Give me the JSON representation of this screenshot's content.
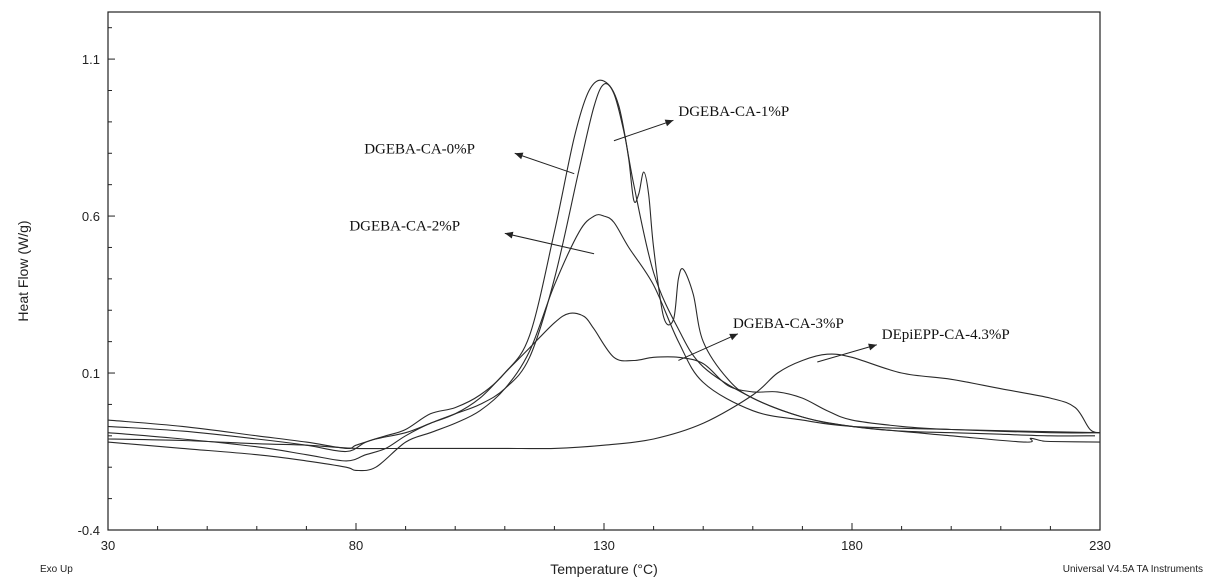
{
  "chart_data": {
    "type": "line",
    "xlabel": "Temperature (°C)",
    "ylabel": "Heat Flow (W/g)",
    "xlim": [
      30,
      230
    ],
    "ylim": [
      -0.4,
      1.25
    ],
    "xticks": [
      30,
      80,
      130,
      180,
      230
    ],
    "xtick_labels": [
      "30",
      "80",
      "130",
      "180",
      "230"
    ],
    "yticks": [
      -0.4,
      0.1,
      0.6,
      1.1
    ],
    "ytick_labels": [
      "-0.4",
      "0.1",
      "0.6",
      "1.1"
    ],
    "grid": false,
    "legend": "annotations with arrows",
    "series": [
      {
        "name": "DGEBA-CA-0%P",
        "x": [
          30,
          45,
          60,
          70,
          78,
          82,
          86,
          90,
          95,
          100,
          105,
          110,
          115,
          120,
          124,
          127,
          130,
          133,
          136,
          140,
          145,
          150,
          160,
          170,
          180,
          190,
          200,
          210,
          220,
          229
        ],
        "y": [
          -0.07,
          -0.085,
          -0.11,
          -0.13,
          -0.15,
          -0.12,
          -0.1,
          -0.08,
          -0.03,
          -0.01,
          0.03,
          0.1,
          0.22,
          0.55,
          0.85,
          1.0,
          1.03,
          0.95,
          0.7,
          0.42,
          0.24,
          0.12,
          0.02,
          -0.04,
          -0.07,
          -0.085,
          -0.09,
          -0.095,
          -0.1,
          -0.1
        ]
      },
      {
        "name": "DGEBA-CA-1%P",
        "x": [
          30,
          45,
          60,
          70,
          78,
          82,
          86,
          90,
          95,
          100,
          105,
          110,
          115,
          120,
          125,
          128,
          130,
          132,
          134,
          135,
          136,
          137,
          138,
          139,
          140,
          142,
          144,
          145,
          146,
          148,
          150,
          155,
          160,
          170,
          180,
          200,
          215,
          216,
          218,
          220,
          230
        ],
        "y": [
          -0.09,
          -0.11,
          -0.135,
          -0.16,
          -0.18,
          -0.16,
          -0.14,
          -0.1,
          -0.06,
          -0.03,
          0.0,
          0.05,
          0.15,
          0.4,
          0.75,
          0.95,
          1.02,
          0.99,
          0.87,
          0.78,
          0.65,
          0.67,
          0.74,
          0.67,
          0.5,
          0.28,
          0.27,
          0.4,
          0.43,
          0.35,
          0.2,
          0.08,
          0.02,
          -0.04,
          -0.07,
          -0.1,
          -0.12,
          -0.108,
          -0.115,
          -0.118,
          -0.12
        ]
      },
      {
        "name": "DGEBA-CA-2%P",
        "x": [
          30,
          45,
          60,
          70,
          78,
          80,
          84,
          90,
          95,
          100,
          105,
          110,
          115,
          120,
          125,
          128,
          130,
          132,
          135,
          140,
          145,
          150,
          160,
          170,
          180,
          200,
          230
        ],
        "y": [
          -0.12,
          -0.14,
          -0.16,
          -0.18,
          -0.2,
          -0.21,
          -0.2,
          -0.12,
          -0.09,
          -0.06,
          -0.02,
          0.05,
          0.17,
          0.38,
          0.55,
          0.6,
          0.6,
          0.58,
          0.5,
          0.38,
          0.2,
          0.07,
          -0.02,
          -0.05,
          -0.07,
          -0.08,
          -0.09
        ]
      },
      {
        "name": "DGEBA-CA-3%P",
        "x": [
          30,
          45,
          60,
          70,
          78,
          80,
          84,
          90,
          95,
          100,
          105,
          110,
          115,
          120,
          123,
          126,
          128,
          132,
          136,
          140,
          145,
          150,
          155,
          160,
          165,
          170,
          175,
          180,
          190,
          200,
          220,
          230
        ],
        "y": [
          -0.05,
          -0.07,
          -0.1,
          -0.12,
          -0.14,
          -0.13,
          -0.11,
          -0.09,
          -0.06,
          -0.03,
          0.02,
          0.1,
          0.18,
          0.26,
          0.29,
          0.28,
          0.24,
          0.15,
          0.14,
          0.15,
          0.15,
          0.13,
          0.06,
          0.04,
          0.04,
          0.02,
          -0.02,
          -0.05,
          -0.07,
          -0.08,
          -0.09,
          -0.09
        ]
      },
      {
        "name": "DEpiEPP-CA-4.3%P",
        "x": [
          30,
          45,
          60,
          70,
          80,
          90,
          100,
          110,
          120,
          130,
          140,
          150,
          160,
          165,
          170,
          175,
          180,
          190,
          200,
          210,
          220,
          225,
          228,
          230
        ],
        "y": [
          -0.11,
          -0.115,
          -0.125,
          -0.13,
          -0.14,
          -0.14,
          -0.14,
          -0.14,
          -0.14,
          -0.13,
          -0.11,
          -0.06,
          0.03,
          0.1,
          0.14,
          0.16,
          0.15,
          0.1,
          0.08,
          0.05,
          0.02,
          -0.01,
          -0.08,
          -0.09
        ]
      }
    ],
    "annotations": [
      {
        "text": "DGEBA-CA-0%P",
        "x": 104,
        "y": 0.815,
        "arrow_from": [
          124,
          0.735
        ],
        "arrow_to": [
          112,
          0.8
        ]
      },
      {
        "text": "DGEBA-CA-1%P",
        "x": 145,
        "y": 0.935,
        "arrow_from": [
          132,
          0.84
        ],
        "arrow_to": [
          144,
          0.905
        ]
      },
      {
        "text": "DGEBA-CA-2%P",
        "x": 101,
        "y": 0.57,
        "arrow_from": [
          128,
          0.48
        ],
        "arrow_to": [
          110,
          0.545
        ]
      },
      {
        "text": "DGEBA-CA-3%P",
        "x": 156,
        "y": 0.26,
        "arrow_from": [
          145,
          0.14
        ],
        "arrow_to": [
          157,
          0.225
        ]
      },
      {
        "text": "DEpiEPP-CA-4.3%P",
        "x": 186,
        "y": 0.225,
        "arrow_from": [
          173,
          0.135
        ],
        "arrow_to": [
          185,
          0.19
        ]
      }
    ]
  },
  "footer": {
    "left": "Exo Up",
    "right": "Universal V4.5A TA Instruments"
  }
}
